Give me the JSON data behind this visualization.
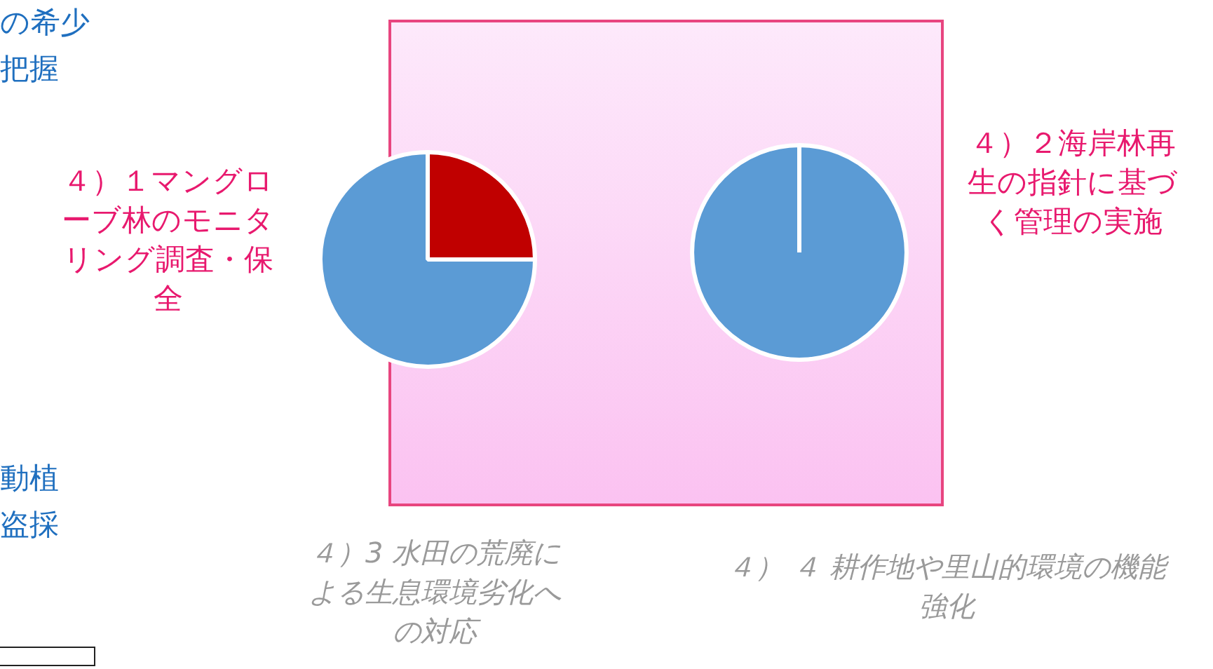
{
  "chart_data": [
    {
      "type": "pie",
      "title": "４）１マングローブ林のモニタリング調査・保全",
      "categories": [
        null,
        null
      ],
      "values": [
        25,
        75
      ],
      "colors": [
        "#c00000",
        "#5b9bd5"
      ],
      "legend": false,
      "annotations": [
        "の希少把握",
        "動植盗採"
      ]
    },
    {
      "type": "pie",
      "title": "４）２海岸林再生の指針に基づく管理の実施",
      "categories": [
        null
      ],
      "values": [
        100
      ],
      "colors": [
        "#5b9bd5"
      ],
      "legend": false,
      "annotations": [
        "４）3  水田の荒廃による生息環境劣化への対応",
        "４） ４  耕作地や里山的環境の機能強化"
      ]
    }
  ]
}
